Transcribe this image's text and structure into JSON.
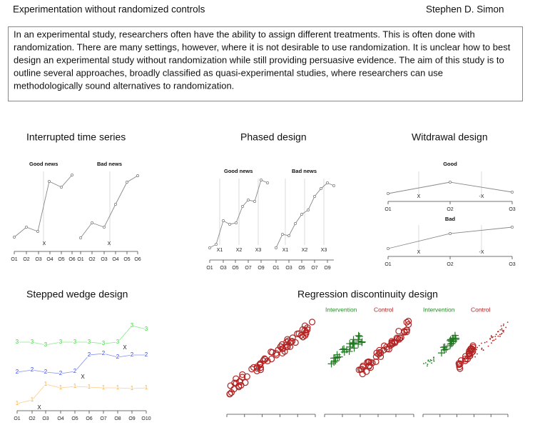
{
  "header": {
    "title": "Experimentation without randomized controls",
    "author": "Stephen D. Simon"
  },
  "abstract": [
    "In an experimental study, researchers often have the ability to assign different treatments. This is often done with",
    "randomization. There are many settings, however, where it is not desirable to use randomization. It is unclear how to best",
    "design an experimental study without randomization while still providing persuasive evidence. The aim of this study is to",
    "outline several approaches, broadly classified as quasi-experimental studies, where researchers can use",
    "methodologically sound alternatives to randomization."
  ],
  "panels": [
    {
      "title": "Interrupted time series",
      "labels": [
        "Good news",
        "Bad news"
      ],
      "markers": [
        "X",
        "X"
      ],
      "ticks": [
        "O1",
        "O2",
        "O3",
        "O4",
        "O5",
        "O6",
        "O1",
        "O2",
        "O3",
        "O4",
        "O5",
        "O6"
      ]
    },
    {
      "title": "Phased design",
      "labels": [
        "Good news",
        "Bad news"
      ],
      "markers": [
        "X1",
        "X2",
        "X3",
        "X1",
        "X2",
        "X3"
      ],
      "ticks": [
        "O1",
        "O3",
        "O5",
        "O7",
        "O9",
        "O1",
        "O3",
        "O5",
        "O7",
        "O9"
      ]
    },
    {
      "title": "Witdrawal design",
      "labels": [
        "Good",
        "Bad"
      ],
      "markers": [
        "X",
        "-X",
        "X",
        "-X"
      ],
      "ticks": [
        "O1",
        "O2",
        "O3",
        "O1",
        "O2",
        "O3"
      ]
    },
    {
      "title": "Stepped wedge design",
      "symbols": [
        "3",
        "2",
        "1"
      ],
      "markers": [
        "X",
        "X",
        "X"
      ],
      "ticks": [
        "O1",
        "O2",
        "O3",
        "O4",
        "O5",
        "O6",
        "O7",
        "O8",
        "O9",
        "O10"
      ]
    },
    {
      "title": "Regression discontinuity design",
      "labels": [
        "Intervention",
        "Control",
        "Intervention",
        "Control"
      ]
    }
  ]
}
